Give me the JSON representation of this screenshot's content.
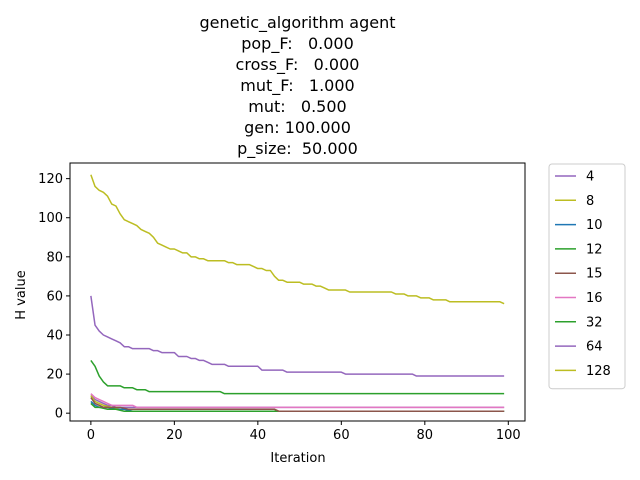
{
  "chart_data": {
    "type": "line",
    "title_lines": [
      "genetic_algorithm agent",
      "pop_F:   0.000",
      "cross_F:   0.000",
      "mut_F:   1.000",
      "mut:   0.500",
      "gen: 100.000",
      "p_size:  50.000"
    ],
    "xlabel": "Iteration",
    "ylabel": "H value",
    "xlim": [
      -5,
      104
    ],
    "ylim": [
      -4,
      128
    ],
    "xticks": [
      0,
      20,
      40,
      60,
      80,
      100
    ],
    "yticks": [
      0,
      20,
      40,
      60,
      80,
      100,
      120
    ],
    "grid": false,
    "legend_position": "outside-right",
    "series": [
      {
        "name": "4",
        "color": "#9467bd",
        "points": [
          [
            0,
            9
          ],
          [
            1,
            7
          ],
          [
            2,
            6
          ],
          [
            3,
            5
          ],
          [
            4,
            4
          ],
          [
            5,
            4
          ],
          [
            6,
            3
          ],
          [
            8,
            3
          ],
          [
            10,
            3
          ],
          [
            12,
            3
          ],
          [
            20,
            3
          ],
          [
            40,
            3
          ],
          [
            60,
            3
          ],
          [
            80,
            3
          ],
          [
            99,
            3
          ]
        ]
      },
      {
        "name": "8",
        "color": "#bcbd22",
        "points": [
          [
            0,
            9
          ],
          [
            1,
            6
          ],
          [
            2,
            5
          ],
          [
            3,
            4
          ],
          [
            5,
            3
          ],
          [
            7,
            2
          ],
          [
            9,
            2
          ],
          [
            12,
            2
          ],
          [
            20,
            2
          ],
          [
            44,
            2
          ],
          [
            45,
            1
          ],
          [
            60,
            1
          ],
          [
            80,
            1
          ],
          [
            99,
            1
          ]
        ]
      },
      {
        "name": "10",
        "color": "#1f77b4",
        "points": [
          [
            0,
            6
          ],
          [
            1,
            4
          ],
          [
            2,
            3
          ],
          [
            4,
            3
          ],
          [
            6,
            2
          ],
          [
            8,
            2
          ],
          [
            10,
            1
          ],
          [
            20,
            1
          ],
          [
            40,
            1
          ],
          [
            60,
            1
          ],
          [
            80,
            1
          ],
          [
            99,
            1
          ]
        ]
      },
      {
        "name": "12",
        "color": "#2ca02c",
        "points": [
          [
            0,
            5
          ],
          [
            1,
            3
          ],
          [
            2,
            3
          ],
          [
            4,
            2
          ],
          [
            6,
            2
          ],
          [
            8,
            1
          ],
          [
            10,
            1
          ],
          [
            20,
            1
          ],
          [
            40,
            1
          ],
          [
            60,
            1
          ],
          [
            80,
            1
          ],
          [
            99,
            1
          ]
        ]
      },
      {
        "name": "15",
        "color": "#8c564b",
        "points": [
          [
            0,
            8
          ],
          [
            1,
            5
          ],
          [
            2,
            4
          ],
          [
            3,
            3
          ],
          [
            5,
            3
          ],
          [
            7,
            3
          ],
          [
            9,
            2
          ],
          [
            12,
            2
          ],
          [
            20,
            2
          ],
          [
            40,
            2
          ],
          [
            44,
            2
          ],
          [
            45,
            1
          ],
          [
            60,
            1
          ],
          [
            80,
            1
          ],
          [
            99,
            1
          ]
        ]
      },
      {
        "name": "16",
        "color": "#e377c2",
        "points": [
          [
            0,
            10
          ],
          [
            1,
            8
          ],
          [
            2,
            7
          ],
          [
            3,
            6
          ],
          [
            4,
            5
          ],
          [
            5,
            4
          ],
          [
            7,
            4
          ],
          [
            9,
            4
          ],
          [
            10,
            4
          ],
          [
            11,
            3
          ],
          [
            20,
            3
          ],
          [
            40,
            3
          ],
          [
            60,
            3
          ],
          [
            80,
            3
          ],
          [
            99,
            3
          ]
        ]
      },
      {
        "name": "32",
        "color": "#2ca02c",
        "points": [
          [
            0,
            27
          ],
          [
            1,
            24
          ],
          [
            2,
            19
          ],
          [
            3,
            16
          ],
          [
            4,
            14
          ],
          [
            6,
            14
          ],
          [
            7,
            14
          ],
          [
            8,
            13
          ],
          [
            10,
            13
          ],
          [
            11,
            12
          ],
          [
            13,
            12
          ],
          [
            14,
            11
          ],
          [
            20,
            11
          ],
          [
            30,
            11
          ],
          [
            31,
            11
          ],
          [
            32,
            10
          ],
          [
            40,
            10
          ],
          [
            50,
            10
          ],
          [
            60,
            10
          ],
          [
            80,
            10
          ],
          [
            99,
            10
          ]
        ]
      },
      {
        "name": "64",
        "color": "#9467bd",
        "points": [
          [
            0,
            60
          ],
          [
            1,
            45
          ],
          [
            2,
            42
          ],
          [
            3,
            40
          ],
          [
            4,
            39
          ],
          [
            5,
            38
          ],
          [
            6,
            37
          ],
          [
            7,
            36
          ],
          [
            8,
            34
          ],
          [
            9,
            34
          ],
          [
            10,
            33
          ],
          [
            14,
            33
          ],
          [
            15,
            32
          ],
          [
            16,
            32
          ],
          [
            17,
            31
          ],
          [
            20,
            31
          ],
          [
            21,
            29
          ],
          [
            23,
            29
          ],
          [
            24,
            28
          ],
          [
            25,
            28
          ],
          [
            26,
            27
          ],
          [
            27,
            27
          ],
          [
            28,
            26
          ],
          [
            29,
            25
          ],
          [
            32,
            25
          ],
          [
            33,
            24
          ],
          [
            40,
            24
          ],
          [
            41,
            22
          ],
          [
            46,
            22
          ],
          [
            47,
            21
          ],
          [
            60,
            21
          ],
          [
            61,
            20
          ],
          [
            77,
            20
          ],
          [
            78,
            19
          ],
          [
            99,
            19
          ]
        ]
      },
      {
        "name": "128",
        "color": "#bcbd22",
        "points": [
          [
            0,
            122
          ],
          [
            1,
            116
          ],
          [
            2,
            114
          ],
          [
            3,
            113
          ],
          [
            4,
            111
          ],
          [
            5,
            107
          ],
          [
            6,
            106
          ],
          [
            7,
            102
          ],
          [
            8,
            99
          ],
          [
            9,
            98
          ],
          [
            10,
            97
          ],
          [
            11,
            96
          ],
          [
            12,
            94
          ],
          [
            13,
            93
          ],
          [
            14,
            92
          ],
          [
            15,
            90
          ],
          [
            16,
            87
          ],
          [
            17,
            86
          ],
          [
            18,
            85
          ],
          [
            19,
            84
          ],
          [
            20,
            84
          ],
          [
            21,
            83
          ],
          [
            22,
            82
          ],
          [
            23,
            82
          ],
          [
            24,
            80
          ],
          [
            25,
            80
          ],
          [
            26,
            79
          ],
          [
            27,
            79
          ],
          [
            28,
            78
          ],
          [
            32,
            78
          ],
          [
            33,
            77
          ],
          [
            34,
            77
          ],
          [
            35,
            76
          ],
          [
            38,
            76
          ],
          [
            39,
            75
          ],
          [
            40,
            74
          ],
          [
            41,
            74
          ],
          [
            42,
            73
          ],
          [
            43,
            73
          ],
          [
            44,
            70
          ],
          [
            45,
            68
          ],
          [
            46,
            68
          ],
          [
            47,
            67
          ],
          [
            50,
            67
          ],
          [
            51,
            66
          ],
          [
            53,
            66
          ],
          [
            54,
            65
          ],
          [
            55,
            65
          ],
          [
            56,
            64
          ],
          [
            57,
            63
          ],
          [
            58,
            63
          ],
          [
            60,
            63
          ],
          [
            61,
            63
          ],
          [
            62,
            62
          ],
          [
            72,
            62
          ],
          [
            73,
            61
          ],
          [
            75,
            61
          ],
          [
            76,
            60
          ],
          [
            78,
            60
          ],
          [
            79,
            59
          ],
          [
            81,
            59
          ],
          [
            82,
            58
          ],
          [
            85,
            58
          ],
          [
            86,
            57
          ],
          [
            98,
            57
          ],
          [
            99,
            56
          ]
        ]
      }
    ]
  }
}
